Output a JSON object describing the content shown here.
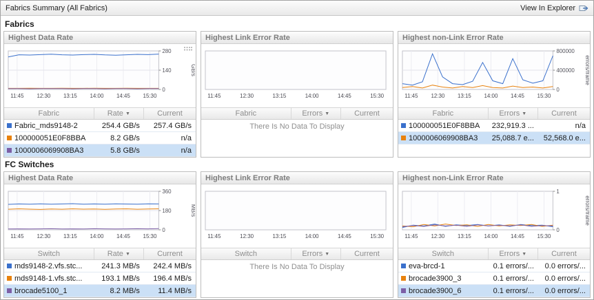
{
  "header": {
    "title": "Fabrics Summary (All Fabrics)",
    "view_in_explorer": "View In Explorer"
  },
  "no_data_message": "There Is No Data To Display",
  "colors": {
    "series_blue": "#3a70cc",
    "series_orange": "#e8820e",
    "series_purple": "#7d5fa6",
    "selected_row_bg": "#cbe0f6"
  },
  "chart_data": [
    {
      "type": "line",
      "x_ticks": [
        "11:45",
        "12:30",
        "13:15",
        "14:00",
        "14:45",
        "15:30"
      ],
      "ylabel": "GB/s",
      "ylim": [
        0,
        280
      ],
      "y_ticks": [
        0,
        140,
        280
      ],
      "series": [
        {
          "name": "Fabric_mds9148-2",
          "color": "#3a70cc",
          "values": [
            236,
            252,
            250,
            253,
            256,
            252,
            250,
            253,
            255,
            251,
            249,
            252,
            255,
            253,
            257
          ]
        },
        {
          "name": "100000051E0F8BBA",
          "color": "#e8820e",
          "values": [
            8,
            8,
            9,
            8,
            8,
            9,
            8,
            8,
            9,
            8,
            8,
            9,
            8,
            8,
            8
          ]
        },
        {
          "name": "1000006069908BA3",
          "color": "#7d5fa6",
          "values": [
            6,
            6,
            5,
            6,
            6,
            6,
            5,
            6,
            6,
            5,
            6,
            6,
            5,
            6,
            6
          ]
        }
      ]
    },
    {
      "type": "line",
      "x_ticks": [
        "11:45",
        "12:30",
        "13:15",
        "14:00",
        "14:45",
        "15:30"
      ],
      "series": []
    },
    {
      "type": "line",
      "x_ticks": [
        "11:45",
        "12:30",
        "13:15",
        "14:00",
        "14:45",
        "15:30"
      ],
      "ylabel": "errors/frame",
      "ylim": [
        0,
        800000
      ],
      "y_ticks": [
        0,
        400000,
        800000
      ],
      "series": [
        {
          "name": "100000051E0F8BBA",
          "color": "#3a70cc",
          "values": [
            120000,
            90000,
            160000,
            740000,
            260000,
            120000,
            100000,
            170000,
            560000,
            180000,
            120000,
            640000,
            200000,
            130000,
            180000,
            700000
          ]
        },
        {
          "name": "1000006069908BA3",
          "color": "#e8820e",
          "values": [
            40000,
            60000,
            30000,
            90000,
            50000,
            30000,
            60000,
            40000,
            80000,
            40000,
            30000,
            70000,
            40000,
            50000,
            30000,
            60000
          ]
        }
      ]
    },
    {
      "type": "line",
      "x_ticks": [
        "11:45",
        "12:30",
        "13:15",
        "14:00",
        "14:45",
        "15:30"
      ],
      "ylabel": "MB/s",
      "ylim": [
        0,
        360
      ],
      "y_ticks": [
        0,
        180,
        360
      ],
      "series": [
        {
          "name": "mds9148-2.vfs.stc...",
          "color": "#3a70cc",
          "values": [
            238,
            242,
            240,
            243,
            239,
            242,
            244,
            240,
            242,
            239,
            243,
            241,
            240,
            243,
            242
          ]
        },
        {
          "name": "mds9148-1.vfs.stc...",
          "color": "#e8820e",
          "values": [
            192,
            196,
            193,
            190,
            195,
            192,
            196,
            193,
            195,
            191,
            194,
            196,
            192,
            195,
            196
          ]
        },
        {
          "name": "brocade5100_1",
          "color": "#7d5fa6",
          "values": [
            8,
            9,
            8,
            9,
            10,
            8,
            9,
            8,
            10,
            9,
            8,
            9,
            10,
            9,
            11
          ]
        }
      ]
    },
    {
      "type": "line",
      "x_ticks": [
        "11:45",
        "12:30",
        "13:15",
        "14:00",
        "14:45",
        "15:30"
      ],
      "series": []
    },
    {
      "type": "line",
      "x_ticks": [
        "11:45",
        "12:30",
        "13:15",
        "14:00",
        "14:45",
        "15:30"
      ],
      "ylabel": "errors/frame",
      "ylim": [
        0,
        1
      ],
      "y_ticks": [
        0,
        1
      ],
      "series": [
        {
          "name": "eva-brcd-1",
          "color": "#3a70cc",
          "values": [
            0.06,
            0.12,
            0.1,
            0.15,
            0.09,
            0.13,
            0.11,
            0.14,
            0.1,
            0.13,
            0.09,
            0.14,
            0.11,
            0.12,
            0.08
          ]
        },
        {
          "name": "brocade3900_3",
          "color": "#e8820e",
          "values": [
            0.1,
            0.08,
            0.14,
            0.1,
            0.15,
            0.11,
            0.13,
            0.09,
            0.14,
            0.1,
            0.13,
            0.11,
            0.14,
            0.09,
            0.12
          ]
        },
        {
          "name": "brocade3900_6",
          "color": "#7d5fa6",
          "values": [
            0.08,
            0.11,
            0.09,
            0.13,
            0.1,
            0.12,
            0.09,
            0.13,
            0.1,
            0.12,
            0.1,
            0.13,
            0.09,
            0.11,
            0.1
          ]
        }
      ]
    }
  ],
  "sections": [
    {
      "label": "Fabrics",
      "panels": [
        {
          "title": "Highest Data Rate",
          "chart_index": 0,
          "has_options_icon": true,
          "table": {
            "columns": [
              {
                "label": "Fabric",
                "sortable": false
              },
              {
                "label": "Rate",
                "sortable": true
              },
              {
                "label": "Current",
                "sortable": false
              }
            ],
            "rows": [
              {
                "swatch": "#3a70cc",
                "name": "Fabric_mds9148-2",
                "value": "254.4 GB/s",
                "current": "257.4 GB/s",
                "selected": false
              },
              {
                "swatch": "#e8820e",
                "name": "100000051E0F8BBA",
                "value": "8.2 GB/s",
                "current": "n/a",
                "selected": false
              },
              {
                "swatch": "#7d5fa6",
                "name": "1000006069908BA3",
                "value": "5.8 GB/s",
                "current": "n/a",
                "selected": true
              }
            ]
          }
        },
        {
          "title": "Highest Link Error Rate",
          "chart_index": 1,
          "has_options_icon": false,
          "table": {
            "columns": [
              {
                "label": "Fabric",
                "sortable": false
              },
              {
                "label": "Errors",
                "sortable": true
              },
              {
                "label": "Current",
                "sortable": false
              }
            ],
            "rows": []
          }
        },
        {
          "title": "Highest non-Link Error Rate",
          "chart_index": 2,
          "has_options_icon": false,
          "table": {
            "columns": [
              {
                "label": "Fabric",
                "sortable": false
              },
              {
                "label": "Errors",
                "sortable": true
              },
              {
                "label": "Current",
                "sortable": false
              }
            ],
            "rows": [
              {
                "swatch": "#3a70cc",
                "name": "100000051E0F8BBA",
                "value": "232,919.3 ...",
                "current": "n/a",
                "selected": false
              },
              {
                "swatch": "#e8820e",
                "name": "1000006069908BA3",
                "value": "25,088.7 e...",
                "current": "52,568.0 e...",
                "selected": true
              }
            ]
          }
        }
      ]
    },
    {
      "label": "FC Switches",
      "panels": [
        {
          "title": "Highest Data Rate",
          "chart_index": 3,
          "has_options_icon": false,
          "table": {
            "columns": [
              {
                "label": "Switch",
                "sortable": false
              },
              {
                "label": "Rate",
                "sortable": true
              },
              {
                "label": "Current",
                "sortable": false
              }
            ],
            "rows": [
              {
                "swatch": "#3a70cc",
                "name": "mds9148-2.vfs.stc...",
                "value": "241.3 MB/s",
                "current": "242.4 MB/s",
                "selected": false
              },
              {
                "swatch": "#e8820e",
                "name": "mds9148-1.vfs.stc...",
                "value": "193.1 MB/s",
                "current": "196.4 MB/s",
                "selected": false
              },
              {
                "swatch": "#7d5fa6",
                "name": "brocade5100_1",
                "value": "8.2 MB/s",
                "current": "11.4 MB/s",
                "selected": true
              }
            ]
          }
        },
        {
          "title": "Highest Link Error Rate",
          "chart_index": 4,
          "has_options_icon": false,
          "table": {
            "columns": [
              {
                "label": "Switch",
                "sortable": false
              },
              {
                "label": "Errors",
                "sortable": true
              },
              {
                "label": "Current",
                "sortable": false
              }
            ],
            "rows": []
          }
        },
        {
          "title": "Highest non-Link Error Rate",
          "chart_index": 5,
          "has_options_icon": false,
          "table": {
            "columns": [
              {
                "label": "Switch",
                "sortable": false
              },
              {
                "label": "Errors",
                "sortable": true
              },
              {
                "label": "Current",
                "sortable": false
              }
            ],
            "rows": [
              {
                "swatch": "#3a70cc",
                "name": "eva-brcd-1",
                "value": "0.1 errors/...",
                "current": "0.0 errors/...",
                "selected": false
              },
              {
                "swatch": "#e8820e",
                "name": "brocade3900_3",
                "value": "0.1 errors/...",
                "current": "0.0 errors/...",
                "selected": false
              },
              {
                "swatch": "#7d5fa6",
                "name": "brocade3900_6",
                "value": "0.1 errors/...",
                "current": "0.0 errors/...",
                "selected": true
              }
            ]
          }
        }
      ]
    }
  ]
}
